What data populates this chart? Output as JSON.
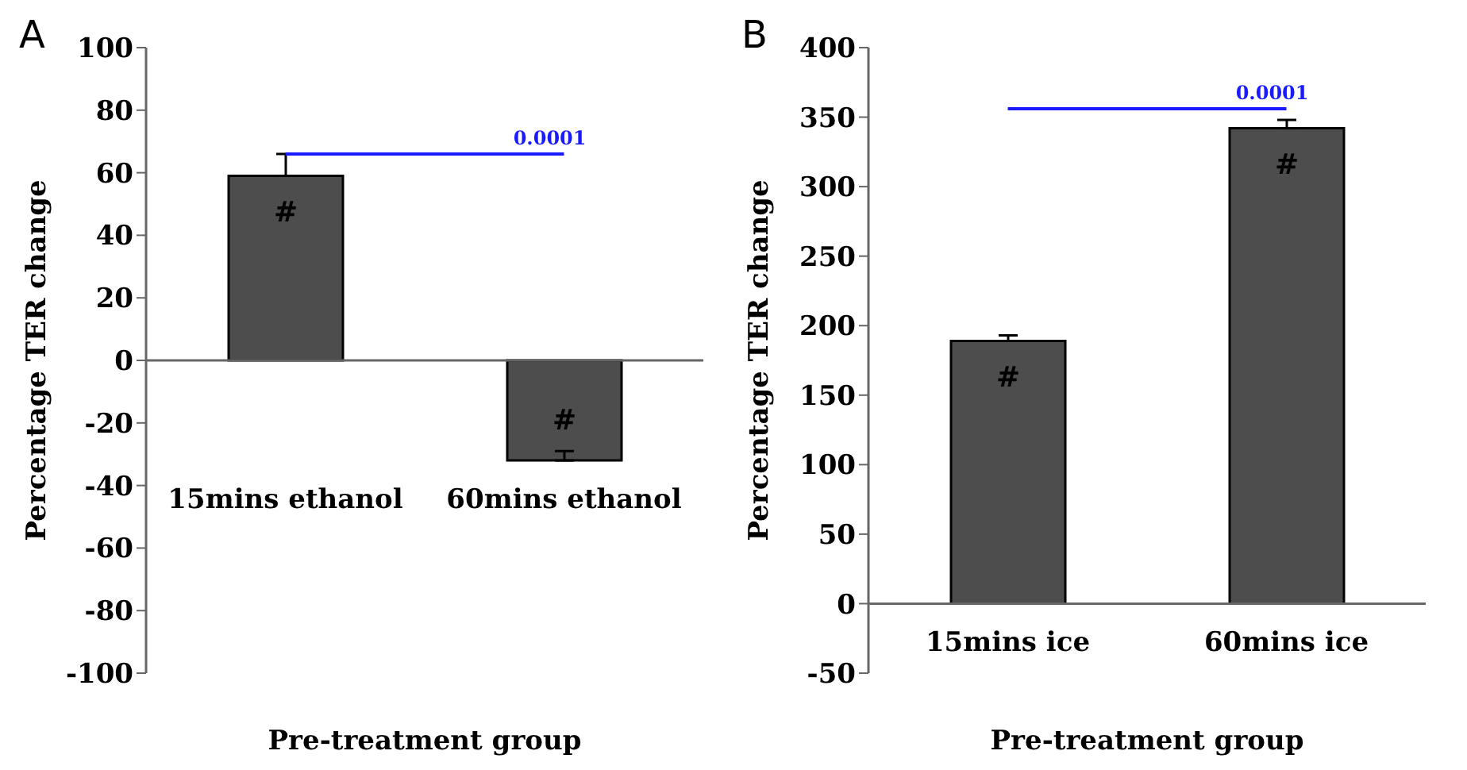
{
  "chart_data": [
    {
      "type": "bar",
      "title": "A",
      "xlabel": "Pre-treatment group",
      "ylabel": "Percentage TER change",
      "categories": [
        "15mins ethanol",
        "60mins ethanol"
      ],
      "values": [
        59,
        -32
      ],
      "color": "#4d4d4d",
      "errors": [
        [
          59,
          66
        ],
        [
          -32,
          -29
        ]
      ],
      "ylim": [
        -100,
        100
      ],
      "yticks": [
        -100,
        -80,
        -60,
        -40,
        -20,
        0,
        20,
        40,
        60,
        80,
        100
      ],
      "legend": false,
      "ref_lines": [
        {
          "axis": "y",
          "value": 66,
          "color": "#1a1aff"
        }
      ],
      "annotations": [
        "#",
        "#",
        "0.0001"
      ]
    },
    {
      "type": "bar",
      "title": "B",
      "xlabel": "Pre-treatment group",
      "ylabel": "Percentage TER change",
      "categories": [
        "15mins ice",
        "60mins ice"
      ],
      "values": [
        189,
        342
      ],
      "color": "#4d4d4d",
      "errors": [
        [
          189,
          193
        ],
        [
          342,
          348
        ]
      ],
      "ylim": [
        -50,
        400
      ],
      "yticks": [
        -50,
        0,
        50,
        100,
        150,
        200,
        250,
        300,
        350,
        400
      ],
      "legend": false,
      "ref_lines": [
        {
          "axis": "y",
          "value": 356,
          "color": "#1a1aff"
        }
      ],
      "annotations": [
        "#",
        "#",
        "0.0001"
      ]
    }
  ]
}
